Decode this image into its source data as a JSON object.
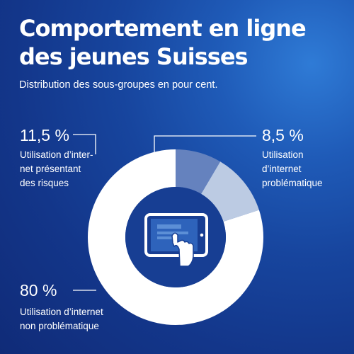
{
  "header": {
    "title": "Comportement en ligne des jeunes Suisses",
    "subtitle": "Distribution des sous-groupes en pour cent."
  },
  "colors": {
    "background_dark": "#102b78",
    "background_light": "#2f7bd6",
    "slice_non_problematique": "#ffffff",
    "slice_a_risques": "#bccbe3",
    "slice_problematique": "#6582be",
    "center_disc": "#173e93"
  },
  "center_icon": "tablet-touch-icon",
  "chart_data": {
    "type": "pie",
    "donut": true,
    "title": "Comportement en ligne des jeunes Suisses",
    "subtitle": "Distribution des sous-groupes en pour cent.",
    "categories": [
      "Utilisation d’internet problématique",
      "Utilisation d’internet présentant des risques",
      "Utilisation d’internet non problématique"
    ],
    "values": [
      8.5,
      11.5,
      80
    ],
    "value_labels": [
      "8,5 %",
      "11,5 %",
      "80 %"
    ],
    "label_texts": [
      "Utilisation\nd’internet\nproblématique",
      "Utilisation d’inter-\nnet présentant\ndes risques",
      "Utilisation d’internet\nnon problématique"
    ],
    "slice_colors": [
      "#6582be",
      "#bccbe3",
      "#ffffff"
    ]
  }
}
